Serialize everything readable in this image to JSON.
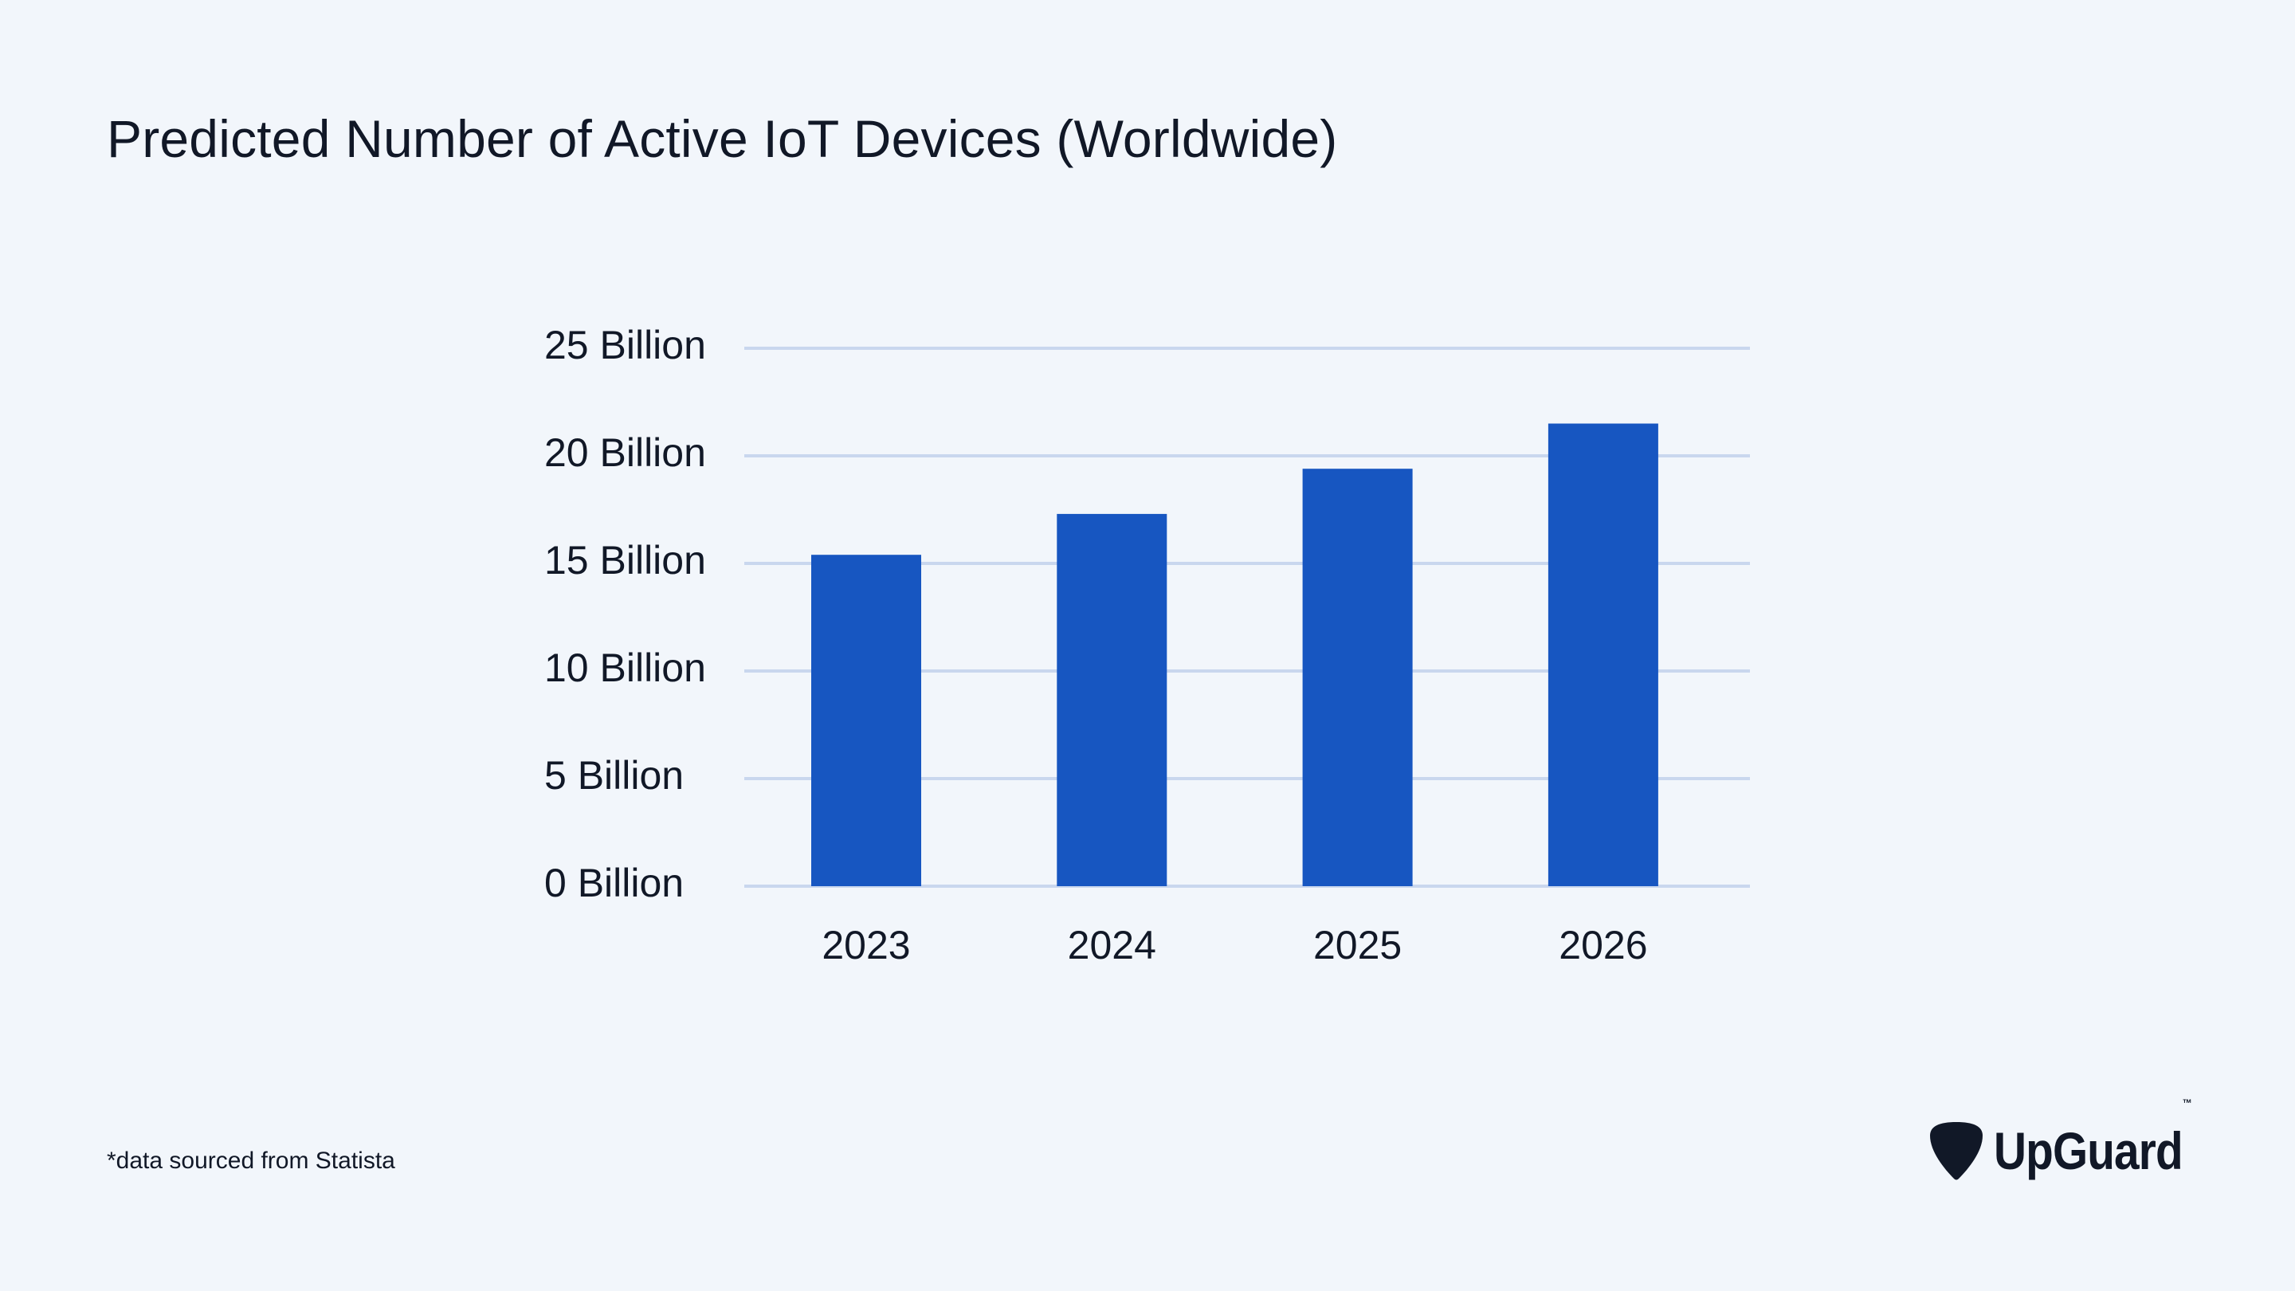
{
  "chart_data": {
    "type": "bar",
    "title": "Predicted Number of Active IoT Devices (Worldwide)",
    "categories": [
      "2023",
      "2024",
      "2025",
      "2026"
    ],
    "values": [
      15.4,
      17.3,
      19.4,
      21.5
    ],
    "unit": "Billion",
    "xlabel": "",
    "ylabel": "",
    "ylim": [
      0,
      25
    ],
    "yticks": [
      {
        "value": 0,
        "label": "0 Billion"
      },
      {
        "value": 5,
        "label": "5 Billion"
      },
      {
        "value": 10,
        "label": "10 Billion"
      },
      {
        "value": 15,
        "label": "15 Billion"
      },
      {
        "value": 20,
        "label": "20 Billion"
      },
      {
        "value": 25,
        "label": "25 Billion"
      }
    ],
    "grid": true,
    "legend": "none"
  },
  "colors": {
    "bar": "#1756c1",
    "grid": "#c9d7ee",
    "background": "#f2f6fb",
    "text": "#111827"
  },
  "footer": {
    "source_note": "*data sourced from Statista",
    "brand": "UpGuard",
    "brand_tm": "™",
    "brand_icon": "guitar-pick-shield-icon"
  }
}
